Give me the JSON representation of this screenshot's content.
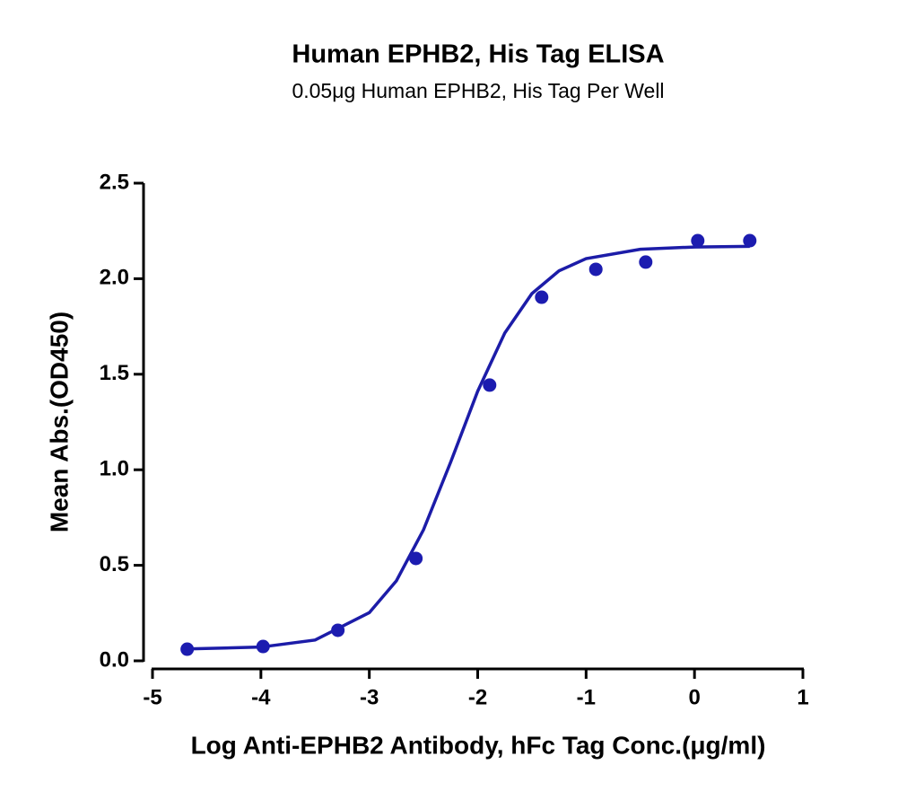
{
  "chart_data": {
    "type": "scatter",
    "title": "Human EPHB2, His Tag ELISA",
    "subtitle": "0.05μg Human EPHB2, His Tag Per Well",
    "x_label": "Log Anti-EPHB2 Antibody, hFc Tag Conc.(μg/ml)",
    "y_label": "Mean Abs.(OD450)",
    "x": [
      -4.68,
      -3.98,
      -3.29,
      -2.57,
      -1.89,
      -1.41,
      -0.91,
      -0.45,
      0.03,
      0.51
    ],
    "series": [
      {
        "color": "#1c1cb0",
        "values": [
          0.061,
          0.075,
          0.16,
          0.536,
          1.443,
          1.903,
          2.049,
          2.087,
          2.199,
          2.199
        ]
      }
    ],
    "curve": {
      "color": "#1c1ca8",
      "x": [
        -4.68,
        -4.0,
        -3.5,
        -3.0,
        -2.75,
        -2.5,
        -2.25,
        -2.0,
        -1.75,
        -1.5,
        -1.25,
        -1.0,
        -0.5,
        0.0,
        0.51
      ],
      "values": [
        0.062,
        0.072,
        0.109,
        0.252,
        0.419,
        0.686,
        1.039,
        1.411,
        1.716,
        1.922,
        2.041,
        2.105,
        2.154,
        2.166,
        2.169
      ]
    },
    "xlim": [
      -5,
      1
    ],
    "xticks": [
      -5,
      -4,
      -3,
      -2,
      -1,
      0,
      1
    ],
    "ylim": [
      0,
      2.5
    ],
    "yticks": [
      {
        "value": 0,
        "label": "0.0"
      },
      0.5,
      {
        "value": 1,
        "label": "1.0"
      },
      1.5,
      {
        "value": 2,
        "label": "2.0"
      },
      2.5
    ]
  }
}
